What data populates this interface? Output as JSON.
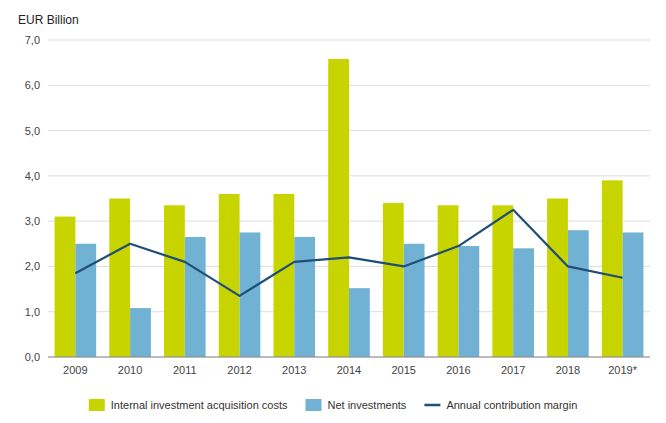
{
  "chart_data": {
    "type": "bar",
    "ylabel": "EUR Billion",
    "categories": [
      "2009",
      "2010",
      "2011",
      "2012",
      "2013",
      "2014",
      "2015",
      "2016",
      "2017",
      "2018",
      "2019*"
    ],
    "series": [
      {
        "name": "Internal investment acquisition costs",
        "type": "bar",
        "color": "#c8d400",
        "values": [
          3.1,
          3.5,
          3.35,
          3.6,
          3.6,
          6.58,
          3.4,
          3.35,
          3.35,
          3.5,
          3.9
        ]
      },
      {
        "name": "Net investments",
        "type": "bar",
        "color": "#71b2d4",
        "values": [
          2.5,
          1.08,
          2.65,
          2.75,
          2.65,
          1.52,
          2.5,
          2.45,
          2.4,
          2.8,
          2.75
        ]
      },
      {
        "name": "Annual contribution margin",
        "type": "line",
        "color": "#1f4e79",
        "values": [
          1.85,
          2.5,
          2.1,
          1.35,
          2.1,
          2.2,
          2.0,
          2.45,
          3.25,
          2.0,
          1.75
        ]
      }
    ],
    "ylim": [
      0,
      7.0
    ],
    "yticks": [
      {
        "value": 0.0,
        "label": "0,0"
      },
      {
        "value": 1.0,
        "label": "1,0"
      },
      {
        "value": 2.0,
        "label": "2,0"
      },
      {
        "value": 3.0,
        "label": "3,0"
      },
      {
        "value": 4.0,
        "label": "4,0"
      },
      {
        "value": 5.0,
        "label": "5,0"
      },
      {
        "value": 6.0,
        "label": "6,0"
      },
      {
        "value": 7.0,
        "label": "7,0"
      }
    ],
    "grid": true,
    "legend": "bottom"
  }
}
